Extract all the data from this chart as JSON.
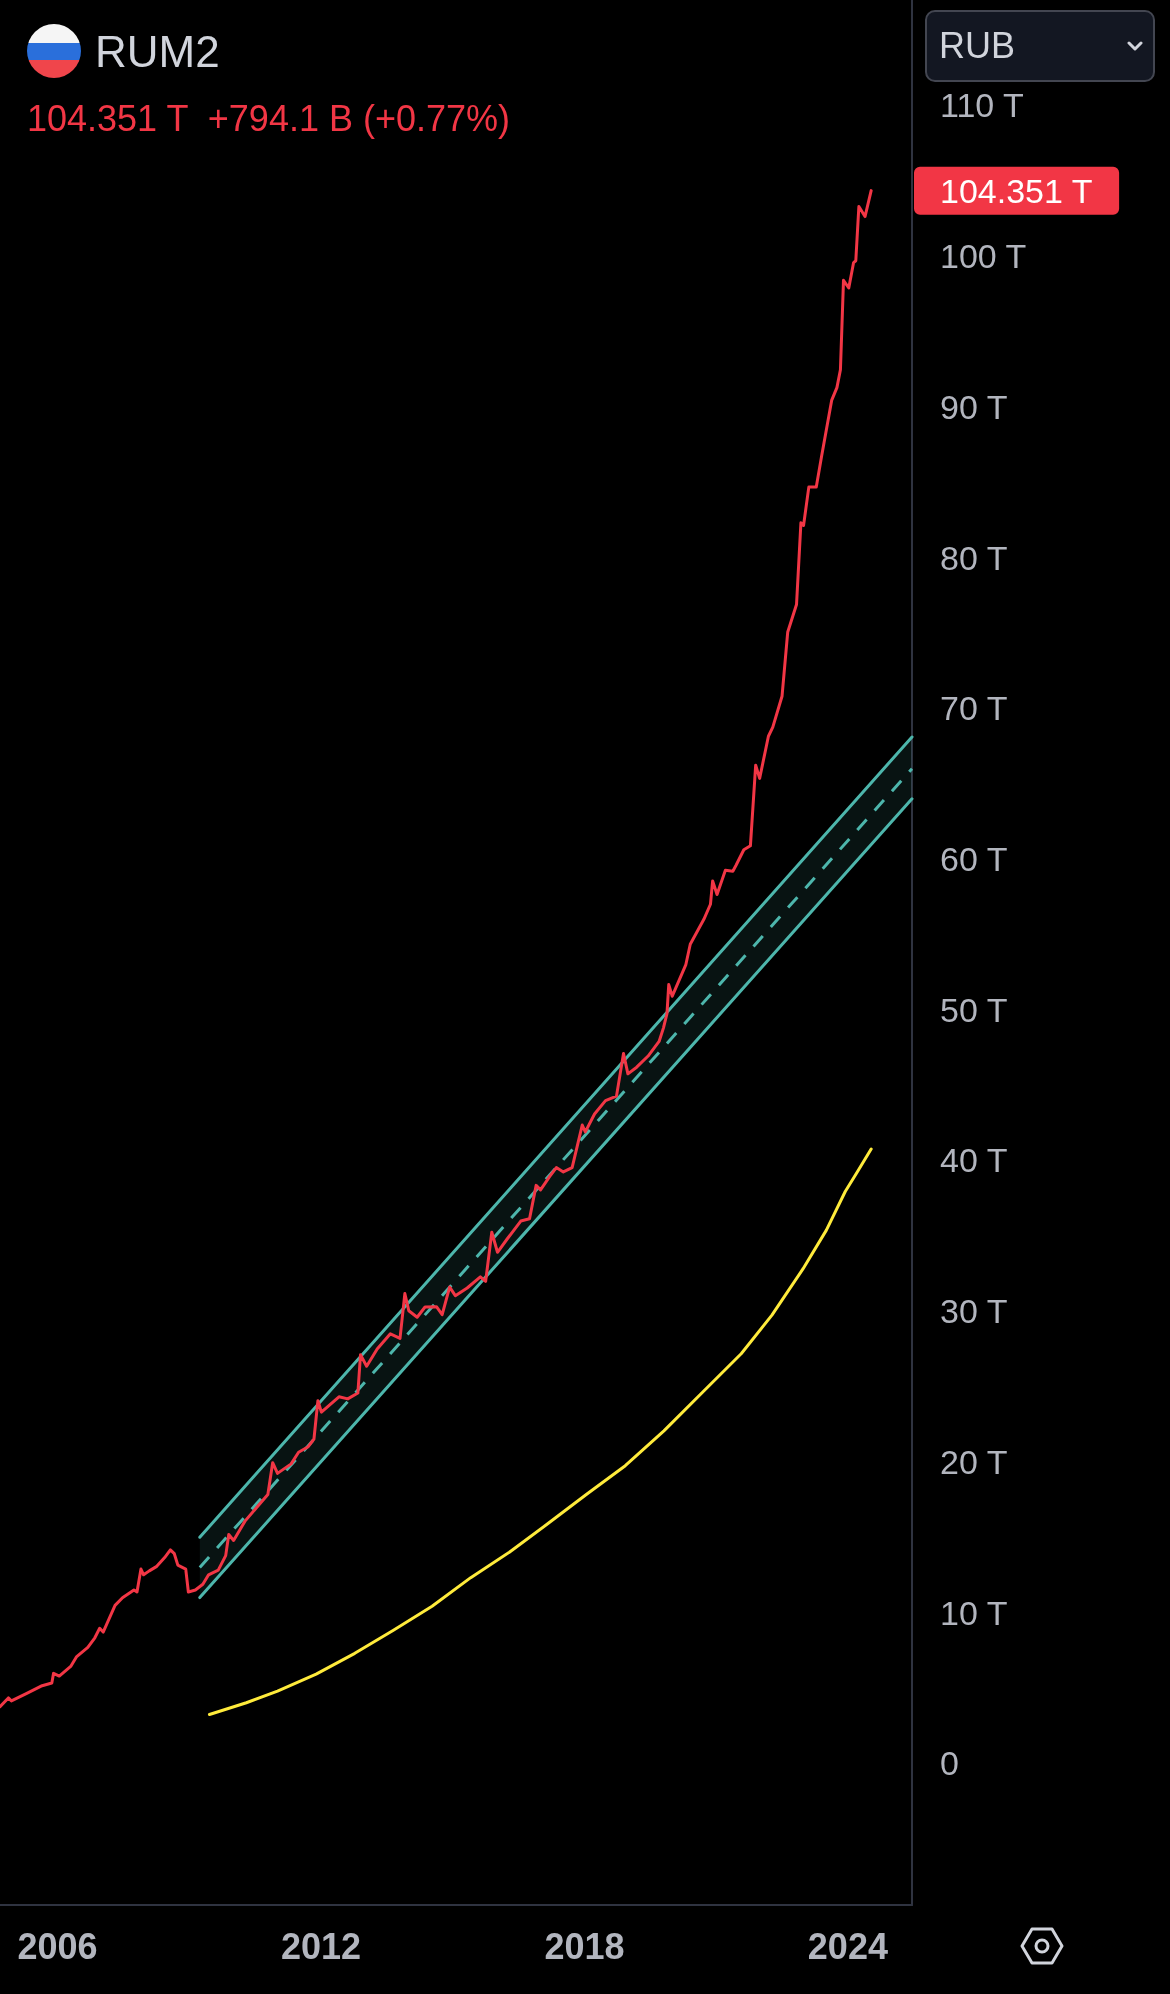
{
  "chart_data": {
    "type": "line",
    "title": "RUM2",
    "subtitle": "104.351 T  +794.1 B (+0.77%)",
    "ylabel": "RUB",
    "xlim": [
      2004.69,
      2025.46
    ],
    "xticks": [
      2006,
      2012,
      2018,
      2024
    ],
    "ylim": [
      -9.4,
      117
    ],
    "yticks": [
      0,
      {
        "value": 10,
        "label": "10 T"
      },
      {
        "value": 20,
        "label": "20 T"
      },
      {
        "value": 30,
        "label": "30 T"
      },
      {
        "value": 40,
        "label": "40 T"
      },
      {
        "value": 50,
        "label": "50 T"
      },
      {
        "value": 60,
        "label": "60 T"
      },
      {
        "value": 70,
        "label": "70 T"
      },
      {
        "value": 80,
        "label": "80 T"
      },
      {
        "value": 90,
        "label": "90 T"
      },
      {
        "value": 100,
        "label": "100 T"
      },
      {
        "value": 110,
        "label": "110 T"
      }
    ],
    "annotations": [
      "104.351 T"
    ],
    "series": [
      {
        "color": "#f23645",
        "x": [
          2004.69,
          2004.88,
          2004.95,
          2005.3,
          2005.65,
          2005.87,
          2005.91,
          2006.04,
          2006.3,
          2006.43,
          2006.69,
          2006.85,
          2006.96,
          2007.04,
          2007.31,
          2007.48,
          2007.74,
          2007.81,
          2007.9,
          2007.96,
          2008.09,
          2008.26,
          2008.44,
          2008.57,
          2008.66,
          2008.74,
          2008.92,
          2008.98,
          2009.14,
          2009.31,
          2009.44,
          2009.66,
          2009.83,
          2009.9,
          2010.01,
          2010.27,
          2010.53,
          2010.79,
          2010.9,
          2011.01,
          2011.32,
          2011.49,
          2011.71,
          2011.84,
          2011.93,
          2012.01,
          2012.41,
          2012.61,
          2012.84,
          2012.9,
          2013.04,
          2013.28,
          2013.58,
          2013.8,
          2013.91,
          2014.0,
          2014.19,
          2014.37,
          2014.63,
          2014.76,
          2014.93,
          2015.06,
          2015.33,
          2015.63,
          2015.75,
          2015.89,
          2016.02,
          2016.24,
          2016.55,
          2016.75,
          2016.9,
          2017.0,
          2017.21,
          2017.36,
          2017.52,
          2017.72,
          2017.95,
          2018.02,
          2018.23,
          2018.48,
          2018.73,
          2018.89,
          2018.99,
          2019.19,
          2019.45,
          2019.7,
          2019.8,
          2019.88,
          2019.92,
          2020.0,
          2020.31,
          2020.41,
          2020.72,
          2020.87,
          2020.92,
          2021.02,
          2021.21,
          2021.38,
          2021.45,
          2021.63,
          2021.78,
          2021.9,
          2021.99,
          2022.19,
          2022.29,
          2022.5,
          2022.63,
          2022.83,
          2022.93,
          2022.99,
          2023.11,
          2023.28,
          2023.4,
          2023.63,
          2023.75,
          2023.83,
          2023.9,
          2024.02,
          2024.13,
          2024.18,
          2024.25,
          2024.39,
          2024.53
        ],
        "values": [
          3.76,
          4.34,
          4.14,
          4.64,
          5.15,
          5.33,
          5.97,
          5.79,
          6.43,
          7.06,
          7.69,
          8.33,
          8.96,
          8.71,
          10.48,
          10.99,
          11.5,
          11.37,
          12.89,
          12.51,
          12.77,
          13.07,
          13.65,
          14.16,
          13.91,
          13.15,
          12.89,
          11.37,
          11.5,
          11.88,
          12.51,
          12.82,
          13.78,
          15.18,
          14.79,
          16.07,
          16.96,
          17.84,
          19.95,
          19.24,
          19.87,
          20.64,
          21.01,
          21.52,
          24.06,
          23.3,
          24.32,
          24.18,
          24.57,
          27.11,
          26.35,
          27.49,
          28.5,
          28.2,
          31.17,
          30.03,
          29.6,
          30.28,
          30.3,
          29.77,
          31.6,
          31.03,
          31.54,
          32.28,
          31.98,
          35.24,
          33.91,
          34.79,
          35.98,
          36.13,
          38.35,
          38.05,
          38.94,
          39.53,
          39.24,
          39.53,
          42.35,
          41.9,
          43.08,
          43.97,
          44.27,
          47.1,
          45.75,
          46.19,
          46.93,
          47.9,
          48.8,
          49.75,
          51.67,
          50.9,
          53.0,
          54.35,
          56.0,
          57.0,
          58.55,
          57.65,
          59.25,
          59.19,
          59.57,
          60.62,
          60.88,
          66.23,
          65.35,
          68.15,
          68.75,
          70.8,
          75.07,
          76.89,
          82.31,
          82.13,
          84.68,
          84.68,
          86.71,
          90.43,
          91.28,
          92.47,
          98.4,
          97.89,
          99.58,
          99.7,
          103.3,
          102.63,
          104.351
        ]
      },
      {
        "color": "#ffeb3b",
        "x": [
          2009.46,
          2010.3,
          2011.01,
          2011.89,
          2012.77,
          2013.65,
          2014.53,
          2015.41,
          2016.29,
          2017.17,
          2018.05,
          2018.93,
          2019.81,
          2020.69,
          2021.57,
          2022.27,
          2022.98,
          2023.51,
          2023.94,
          2024.21,
          2024.53
        ],
        "values": [
          3.24,
          4.02,
          4.79,
          5.92,
          7.3,
          8.83,
          10.42,
          12.32,
          14.01,
          15.91,
          17.85,
          19.75,
          22.06,
          24.62,
          27.18,
          29.74,
          32.82,
          35.38,
          37.94,
          39.22,
          40.76
        ]
      },
      {
        "color": "#4db6ac",
        "x": [
          2009.24,
          2025.46
        ],
        "values": [
          15.0,
          68.1
        ]
      },
      {
        "color": "#4db6ac",
        "line_style": "dashed",
        "x": [
          2009.24,
          2025.46
        ],
        "values": [
          13.0,
          66.0
        ],
        "lower": [
          11.0,
          64.0
        ],
        "upper": [
          15.0,
          68.1
        ]
      },
      {
        "color": "#4db6ac",
        "x": [
          2009.24,
          2025.46
        ],
        "values": [
          11.0,
          64.0
        ]
      }
    ]
  }
}
